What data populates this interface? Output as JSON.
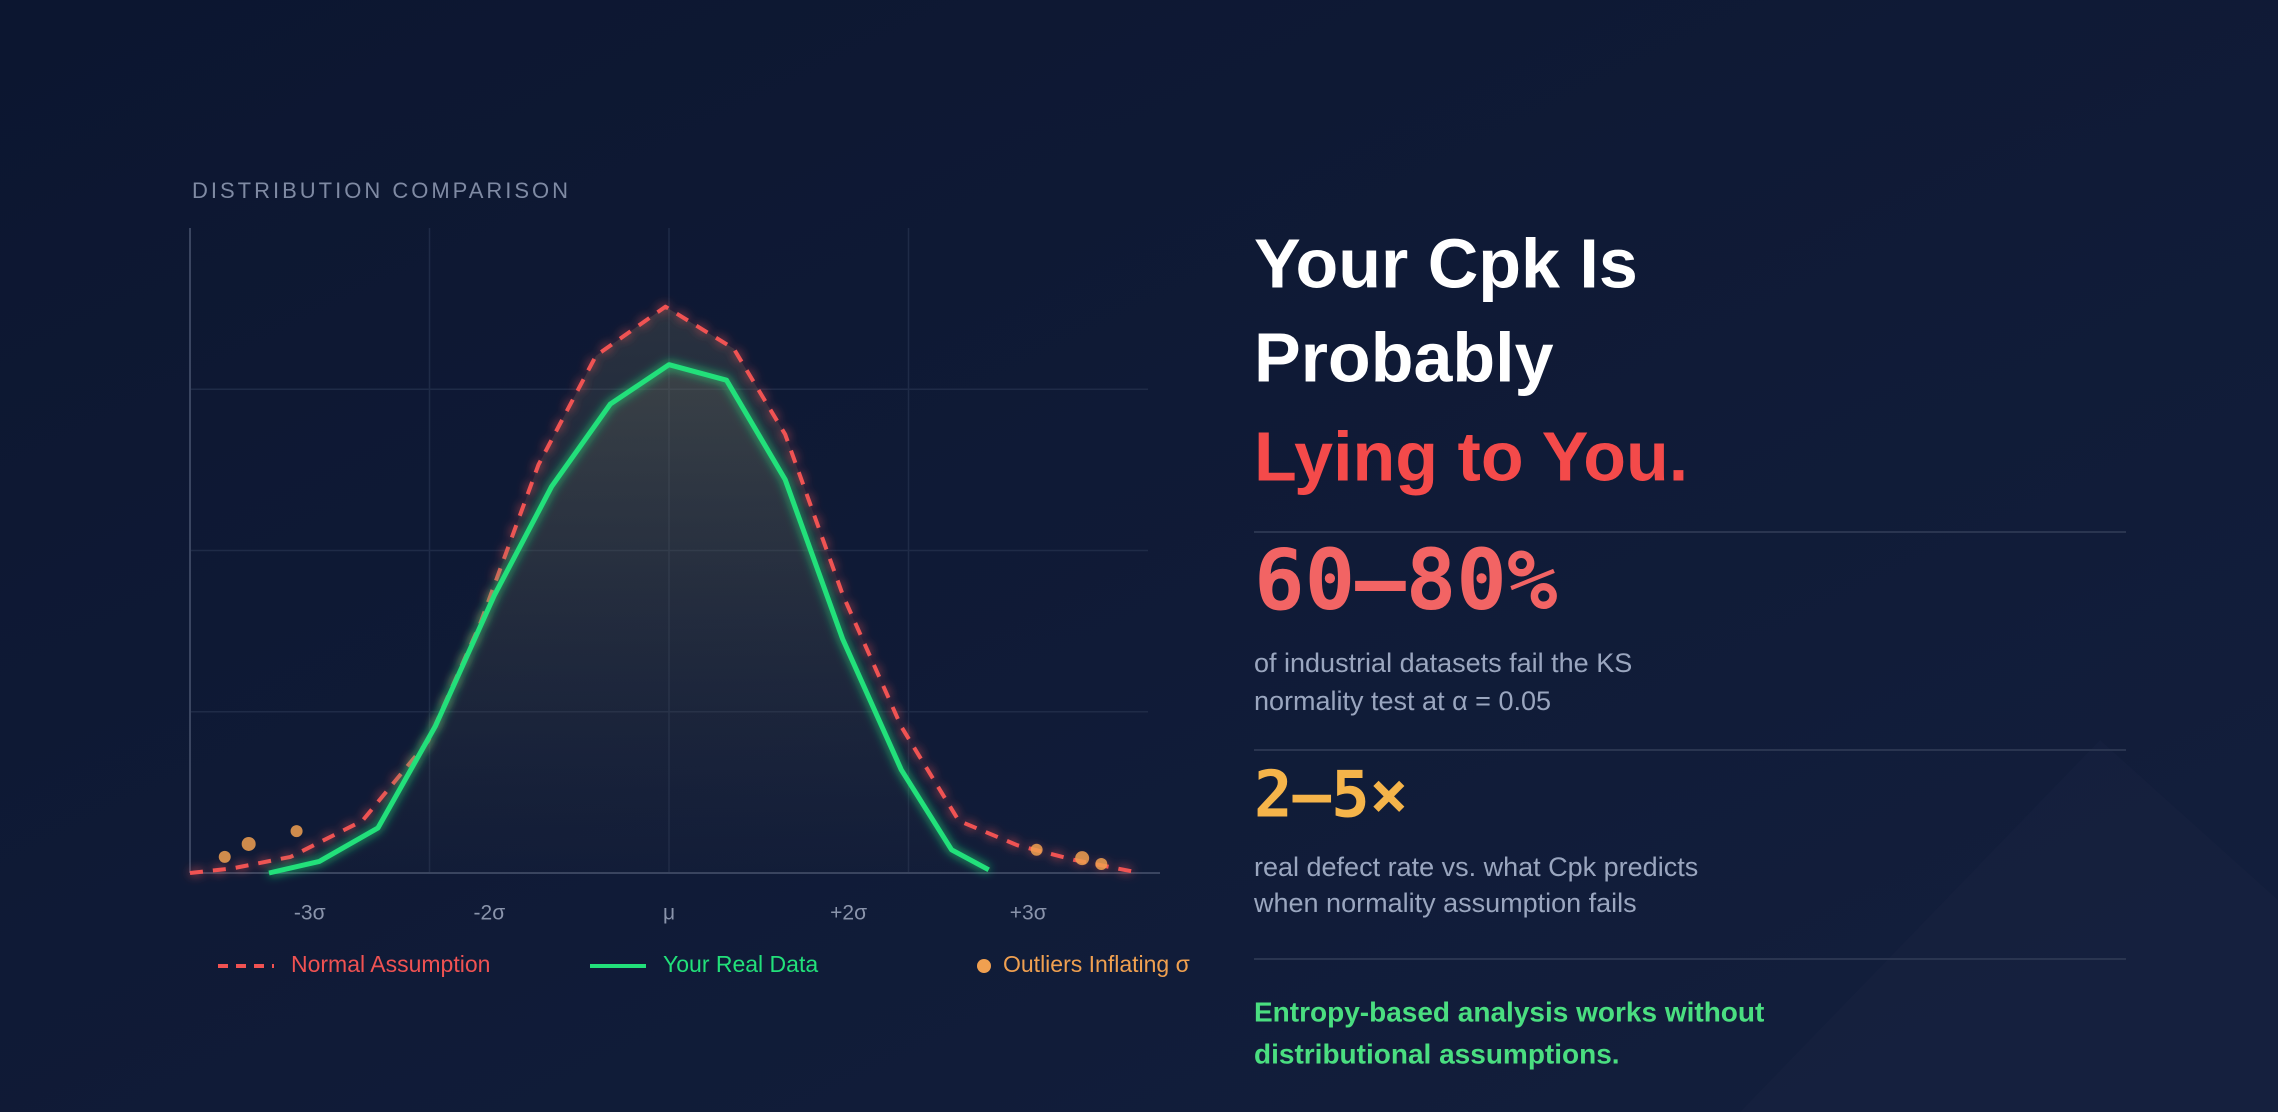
{
  "chart_data": {
    "type": "line",
    "title": "DISTRIBUTION COMPARISON",
    "xlim": [
      -4,
      4
    ],
    "ylim": [
      0,
      1
    ],
    "xticks": [
      {
        "value": -3,
        "label": "-3σ"
      },
      {
        "value": -1.5,
        "label": "-2σ"
      },
      {
        "value": 0,
        "label": "μ"
      },
      {
        "value": 1.5,
        "label": "+2σ"
      },
      {
        "value": 3,
        "label": "+3σ"
      }
    ],
    "yticks": [
      0.25,
      0.5,
      0.75
    ],
    "xgrid": [
      -2,
      0,
      2
    ],
    "grid": true,
    "series": [
      {
        "name": "Normal Assumption",
        "color": "#f05252",
        "style": "dashed",
        "x": [
          -4,
          -3.65,
          -3.16,
          -2.56,
          -2.01,
          -1.58,
          -1.09,
          -0.61,
          -0.03,
          0.54,
          0.97,
          1.45,
          1.94,
          2.42,
          2.91,
          3.39,
          3.88
        ],
        "values": [
          0,
          0.007,
          0.025,
          0.081,
          0.205,
          0.385,
          0.633,
          0.802,
          0.878,
          0.813,
          0.68,
          0.432,
          0.227,
          0.081,
          0.043,
          0.02,
          0.002
        ]
      },
      {
        "name": "Your Real Data",
        "color": "#22e07a",
        "style": "solid",
        "x": [
          -3.34,
          -2.92,
          -2.43,
          -1.95,
          -1.46,
          -0.98,
          -0.49,
          0,
          0.48,
          0.97,
          1.45,
          1.94,
          2.36,
          2.67
        ],
        "values": [
          0,
          0.018,
          0.07,
          0.228,
          0.43,
          0.599,
          0.727,
          0.788,
          0.764,
          0.61,
          0.363,
          0.16,
          0.036,
          0.005
        ]
      },
      {
        "name": "Outliers Inflating σ",
        "color": "#f0a050",
        "style": "dots",
        "x": [
          -3.71,
          -3.51,
          -3.11,
          3.07,
          3.45,
          3.61
        ],
        "values": [
          0.025,
          0.045,
          0.065,
          0.036,
          0.023,
          0.014
        ]
      }
    ]
  },
  "headline": {
    "lines": [
      "Your Cpk Is",
      "Probably",
      "Lying to You."
    ]
  },
  "stats": [
    {
      "value": "60–80%",
      "description": [
        "of industrial datasets fail the KS",
        "normality test at α = 0.05"
      ]
    },
    {
      "value": "2–5×",
      "description": [
        "real defect rate vs. what Cpk predicts",
        "when normality assumption fails"
      ]
    }
  ],
  "footnote": [
    "Entropy-based analysis works without",
    "distributional assumptions."
  ]
}
